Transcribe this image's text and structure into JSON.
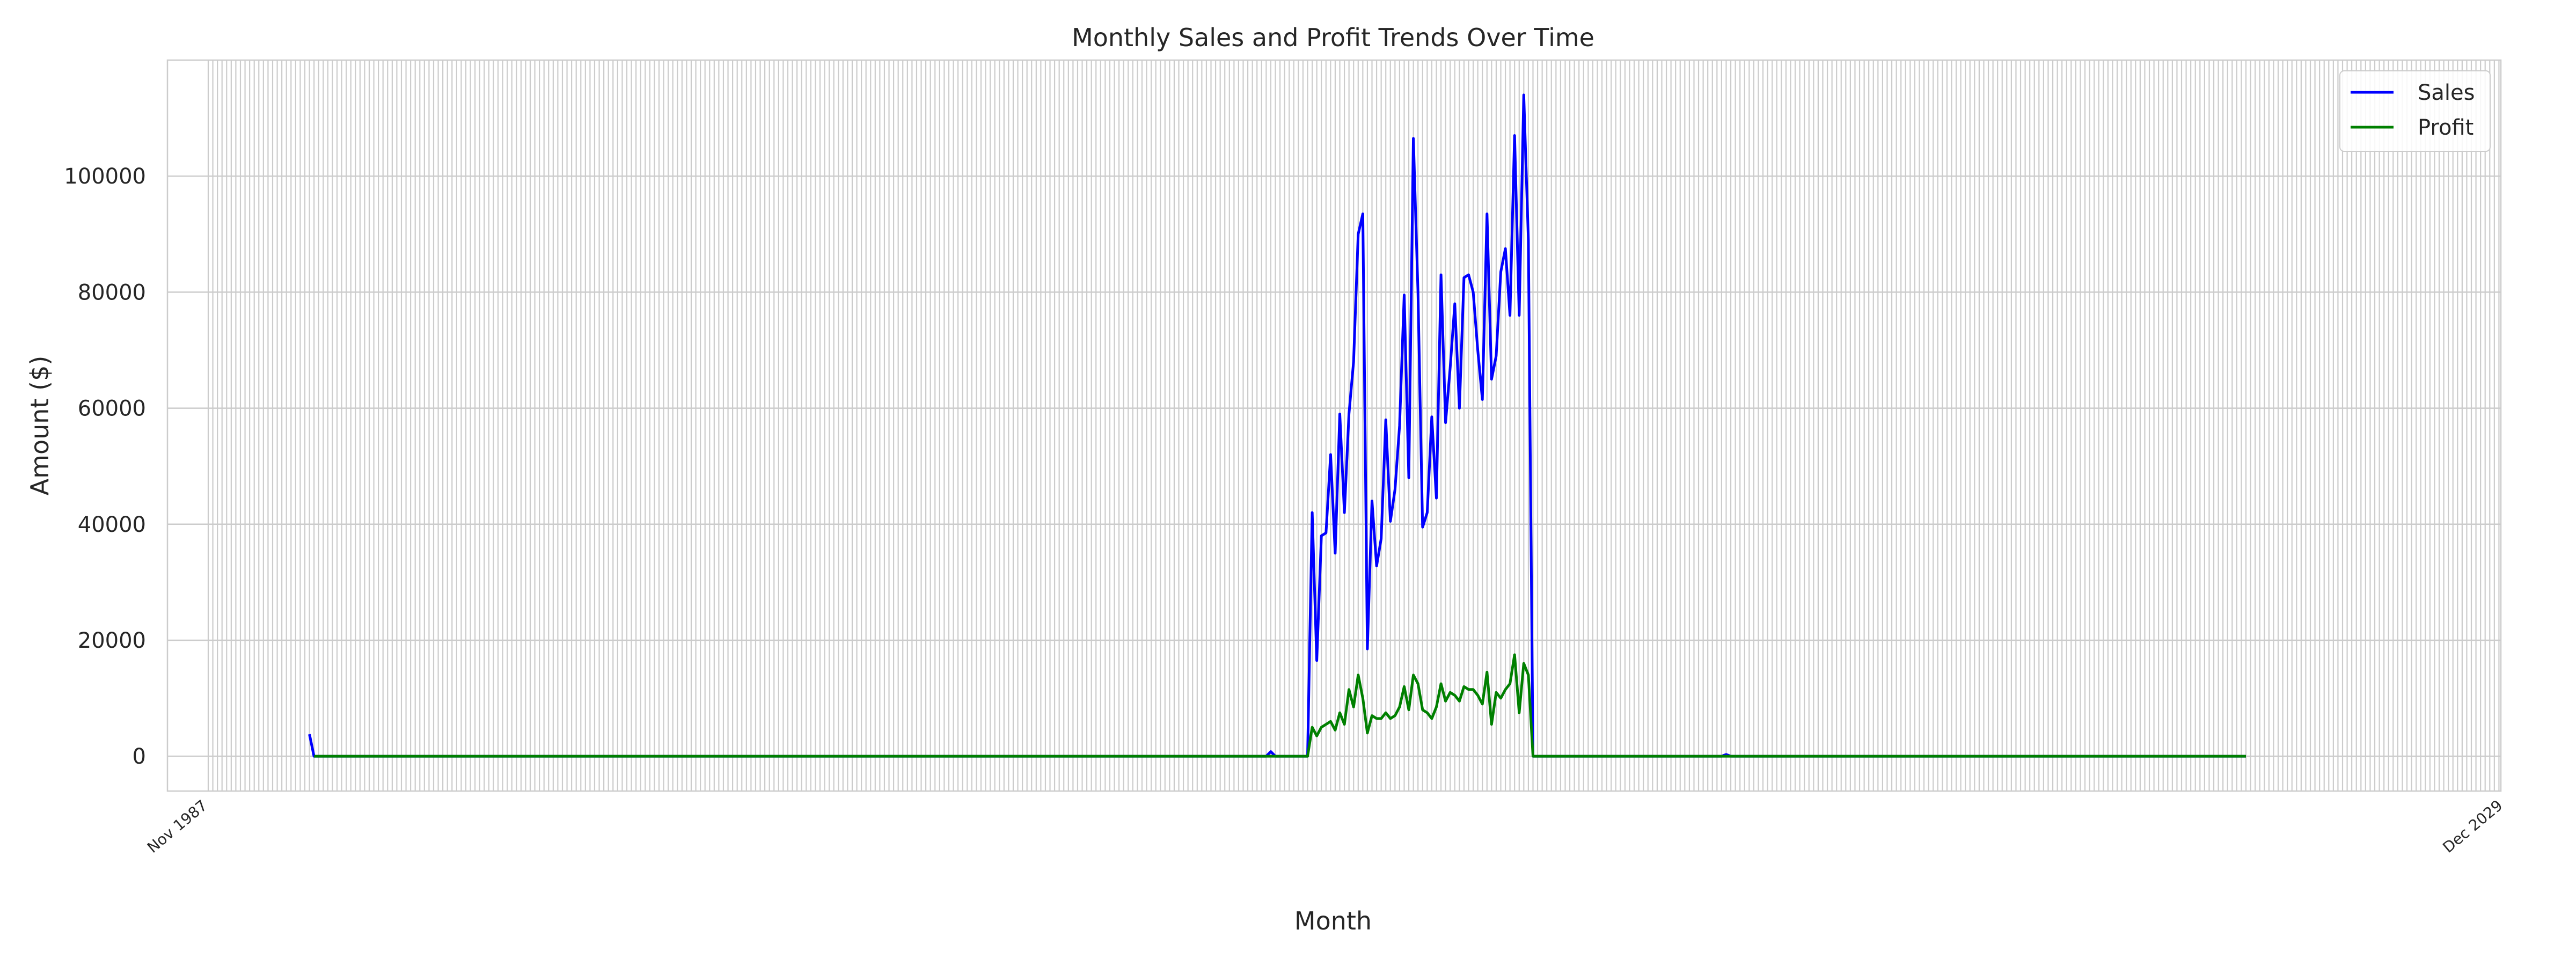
{
  "chart_data": {
    "type": "line",
    "title": "Monthly Sales and Profit Trends Over Time",
    "xlabel": "Month",
    "ylabel": "Amount ($)",
    "ylim": [
      -6000,
      120000
    ],
    "yticks": [
      0,
      20000,
      40000,
      60000,
      80000,
      100000
    ],
    "grid": true,
    "legend": "top-right",
    "x_tick_labels_visible": [
      "Nov 1987",
      "Dec 2029"
    ],
    "series": [
      {
        "name": "Sales",
        "color": "#0000ff",
        "points": [
          [
            22,
            3800
          ],
          [
            23,
            0
          ],
          [
            230,
            0
          ],
          [
            231,
            800
          ],
          [
            232,
            0
          ],
          [
            239,
            0
          ],
          [
            240,
            42000
          ],
          [
            241,
            16500
          ],
          [
            242,
            38000
          ],
          [
            243,
            38500
          ],
          [
            244,
            52000
          ],
          [
            245,
            35000
          ],
          [
            246,
            59000
          ],
          [
            247,
            42000
          ],
          [
            248,
            59000
          ],
          [
            249,
            68000
          ],
          [
            250,
            90000
          ],
          [
            251,
            93500
          ],
          [
            252,
            18500
          ],
          [
            253,
            44000
          ],
          [
            254,
            32800
          ],
          [
            255,
            37500
          ],
          [
            256,
            58000
          ],
          [
            257,
            40500
          ],
          [
            258,
            46000
          ],
          [
            259,
            57000
          ],
          [
            260,
            79500
          ],
          [
            261,
            48000
          ],
          [
            262,
            106500
          ],
          [
            263,
            80000
          ],
          [
            264,
            39500
          ],
          [
            265,
            42000
          ],
          [
            266,
            58500
          ],
          [
            267,
            44500
          ],
          [
            268,
            83000
          ],
          [
            269,
            57500
          ],
          [
            270,
            67000
          ],
          [
            271,
            78000
          ],
          [
            272,
            60000
          ],
          [
            273,
            82500
          ],
          [
            274,
            83000
          ],
          [
            275,
            80000
          ],
          [
            276,
            70000
          ],
          [
            277,
            61500
          ],
          [
            278,
            93500
          ],
          [
            279,
            65000
          ],
          [
            280,
            69000
          ],
          [
            281,
            83500
          ],
          [
            282,
            87500
          ],
          [
            283,
            76000
          ],
          [
            284,
            107000
          ],
          [
            285,
            76000
          ],
          [
            286,
            114000
          ],
          [
            287,
            89000
          ],
          [
            288,
            0
          ],
          [
            329,
            0
          ],
          [
            330,
            300
          ],
          [
            331,
            0
          ],
          [
            443,
            0
          ]
        ]
      },
      {
        "name": "Profit",
        "color": "#008000",
        "points": [
          [
            23,
            0
          ],
          [
            239,
            0
          ],
          [
            240,
            5000
          ],
          [
            241,
            3500
          ],
          [
            242,
            5000
          ],
          [
            243,
            5500
          ],
          [
            244,
            6000
          ],
          [
            245,
            4500
          ],
          [
            246,
            7500
          ],
          [
            247,
            5500
          ],
          [
            248,
            11500
          ],
          [
            249,
            8500
          ],
          [
            250,
            14000
          ],
          [
            251,
            10000
          ],
          [
            252,
            4000
          ],
          [
            253,
            7000
          ],
          [
            254,
            6500
          ],
          [
            255,
            6500
          ],
          [
            256,
            7500
          ],
          [
            257,
            6500
          ],
          [
            258,
            7000
          ],
          [
            259,
            8500
          ],
          [
            260,
            12000
          ],
          [
            261,
            8000
          ],
          [
            262,
            14000
          ],
          [
            263,
            12500
          ],
          [
            264,
            8000
          ],
          [
            265,
            7500
          ],
          [
            266,
            6500
          ],
          [
            267,
            8500
          ],
          [
            268,
            12500
          ],
          [
            269,
            9500
          ],
          [
            270,
            11000
          ],
          [
            271,
            10500
          ],
          [
            272,
            9500
          ],
          [
            273,
            12000
          ],
          [
            274,
            11500
          ],
          [
            275,
            11500
          ],
          [
            276,
            10500
          ],
          [
            277,
            9000
          ],
          [
            278,
            14500
          ],
          [
            279,
            5500
          ],
          [
            280,
            11000
          ],
          [
            281,
            10000
          ],
          [
            282,
            11500
          ],
          [
            283,
            12500
          ],
          [
            284,
            17500
          ],
          [
            285,
            7500
          ],
          [
            286,
            16000
          ],
          [
            287,
            14000
          ],
          [
            288,
            0
          ],
          [
            443,
            0
          ]
        ]
      }
    ]
  }
}
